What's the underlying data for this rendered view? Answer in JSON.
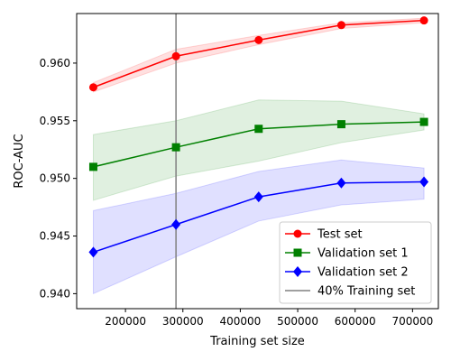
{
  "chart_data": {
    "type": "line",
    "xlabel": "Training set size",
    "ylabel": "ROC-AUC",
    "xlim": [
      115000,
      745000
    ],
    "ylim": [
      0.9387,
      0.9643
    ],
    "x_ticks": [
      200000,
      300000,
      400000,
      500000,
      600000,
      700000
    ],
    "x_tick_labels": [
      "200000",
      "300000",
      "400000",
      "500000",
      "600000",
      "700000"
    ],
    "y_ticks": [
      0.94,
      0.945,
      0.95,
      0.955,
      0.96
    ],
    "y_tick_labels": [
      "0.940",
      "0.945",
      "0.950",
      "0.955",
      "0.960"
    ],
    "x": [
      144000,
      288000,
      432000,
      576000,
      720000
    ],
    "series": [
      {
        "name": "Test set",
        "color": "#ff0000",
        "marker": "circle",
        "values": [
          0.9579,
          0.9606,
          0.962,
          0.9633,
          0.9637
        ],
        "band_low": [
          0.9575,
          0.96,
          0.9616,
          0.963,
          0.9635
        ],
        "band_high": [
          0.9583,
          0.9612,
          0.9624,
          0.9635,
          0.9639
        ]
      },
      {
        "name": "Validation set 1",
        "color": "#008000",
        "marker": "square",
        "values": [
          0.951,
          0.9527,
          0.9543,
          0.9547,
          0.9549
        ],
        "band_low": [
          0.9481,
          0.9502,
          0.9515,
          0.9531,
          0.9542
        ],
        "band_high": [
          0.9538,
          0.955,
          0.9568,
          0.9567,
          0.9556
        ]
      },
      {
        "name": "Validation set 2",
        "color": "#0000ff",
        "marker": "diamond",
        "values": [
          0.9436,
          0.946,
          0.9484,
          0.9496,
          0.9497
        ],
        "band_low": [
          0.94,
          0.9432,
          0.9463,
          0.9477,
          0.9482
        ],
        "band_high": [
          0.9472,
          0.9487,
          0.9506,
          0.9516,
          0.9509
        ]
      }
    ],
    "vline": {
      "name": "40% Training set",
      "x": 288000,
      "color": "#808080"
    },
    "legend_position": "lower-right",
    "grid": false
  }
}
